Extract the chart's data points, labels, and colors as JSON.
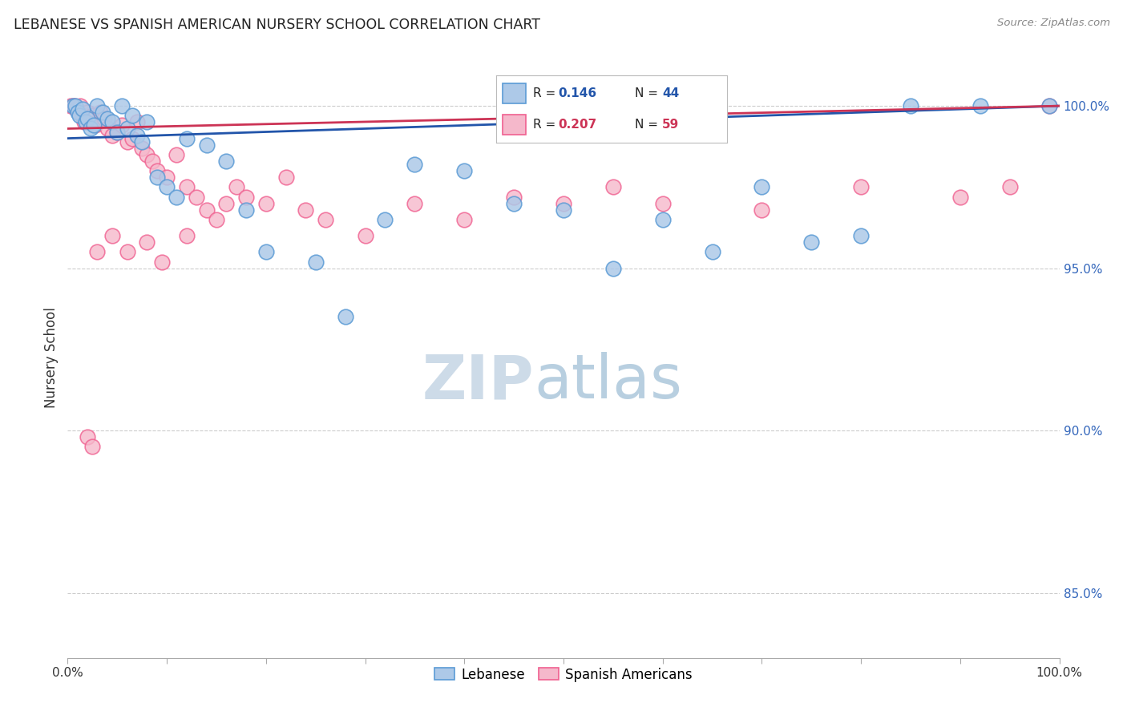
{
  "title": "LEBANESE VS SPANISH AMERICAN NURSERY SCHOOL CORRELATION CHART",
  "source": "Source: ZipAtlas.com",
  "ylabel": "Nursery School",
  "yticks": [
    100.0,
    95.0,
    90.0,
    85.0
  ],
  "ytick_labels": [
    "100.0%",
    "95.0%",
    "90.0%",
    "85.0%"
  ],
  "xlim": [
    0.0,
    100.0
  ],
  "ylim": [
    83.0,
    101.5
  ],
  "legend_blue_label": "Lebanese",
  "legend_pink_label": "Spanish Americans",
  "legend_r_blue": "0.146",
  "legend_n_blue": "44",
  "legend_r_pink": "0.207",
  "legend_n_pink": "59",
  "blue_color": "#adc9e8",
  "pink_color": "#f5b8cb",
  "blue_edge_color": "#5b9bd5",
  "pink_edge_color": "#f06090",
  "blue_line_color": "#2255aa",
  "pink_line_color": "#cc3355",
  "blue_r_color": "#2255aa",
  "pink_r_color": "#cc3355",
  "watermark_zip_color": "#cddbe8",
  "watermark_atlas_color": "#b8cfe0",
  "blue_scatter_x": [
    0.5,
    0.8,
    1.0,
    1.2,
    1.5,
    1.8,
    2.0,
    2.3,
    2.6,
    3.0,
    3.5,
    4.0,
    4.5,
    5.0,
    5.5,
    6.0,
    6.5,
    7.0,
    7.5,
    8.0,
    9.0,
    10.0,
    11.0,
    12.0,
    14.0,
    16.0,
    18.0,
    20.0,
    25.0,
    28.0,
    32.0,
    35.0,
    40.0,
    45.0,
    50.0,
    55.0,
    60.0,
    65.0,
    70.0,
    75.0,
    80.0,
    85.0,
    92.0,
    99.0
  ],
  "blue_scatter_y": [
    100.0,
    100.0,
    99.8,
    99.7,
    99.9,
    99.5,
    99.6,
    99.3,
    99.4,
    100.0,
    99.8,
    99.6,
    99.5,
    99.2,
    100.0,
    99.3,
    99.7,
    99.1,
    98.9,
    99.5,
    97.8,
    97.5,
    97.2,
    99.0,
    98.8,
    98.3,
    96.8,
    95.5,
    95.2,
    93.5,
    96.5,
    98.2,
    98.0,
    97.0,
    96.8,
    95.0,
    96.5,
    95.5,
    97.5,
    95.8,
    96.0,
    100.0,
    100.0,
    100.0
  ],
  "pink_scatter_x": [
    0.3,
    0.5,
    0.7,
    0.9,
    1.1,
    1.3,
    1.5,
    1.7,
    2.0,
    2.2,
    2.5,
    2.8,
    3.0,
    3.3,
    3.7,
    4.0,
    4.5,
    5.0,
    5.5,
    6.0,
    6.5,
    7.0,
    7.5,
    8.0,
    8.5,
    9.0,
    10.0,
    11.0,
    12.0,
    13.0,
    14.0,
    15.0,
    16.0,
    17.0,
    18.0,
    20.0,
    22.0,
    24.0,
    26.0,
    30.0,
    35.0,
    40.0,
    45.0,
    50.0,
    55.0,
    60.0,
    70.0,
    80.0,
    90.0,
    95.0,
    99.0,
    2.0,
    2.5,
    3.0,
    4.5,
    6.0,
    8.0,
    9.5,
    12.0
  ],
  "pink_scatter_y": [
    100.0,
    100.0,
    100.0,
    99.9,
    99.8,
    100.0,
    99.7,
    99.5,
    99.8,
    99.6,
    99.7,
    99.4,
    99.5,
    99.8,
    99.6,
    99.3,
    99.1,
    99.2,
    99.4,
    98.9,
    99.0,
    99.5,
    98.7,
    98.5,
    98.3,
    98.0,
    97.8,
    98.5,
    97.5,
    97.2,
    96.8,
    96.5,
    97.0,
    97.5,
    97.2,
    97.0,
    97.8,
    96.8,
    96.5,
    96.0,
    97.0,
    96.5,
    97.2,
    97.0,
    97.5,
    97.0,
    96.8,
    97.5,
    97.2,
    97.5,
    100.0,
    89.8,
    89.5,
    95.5,
    96.0,
    95.5,
    95.8,
    95.2,
    96.0
  ]
}
